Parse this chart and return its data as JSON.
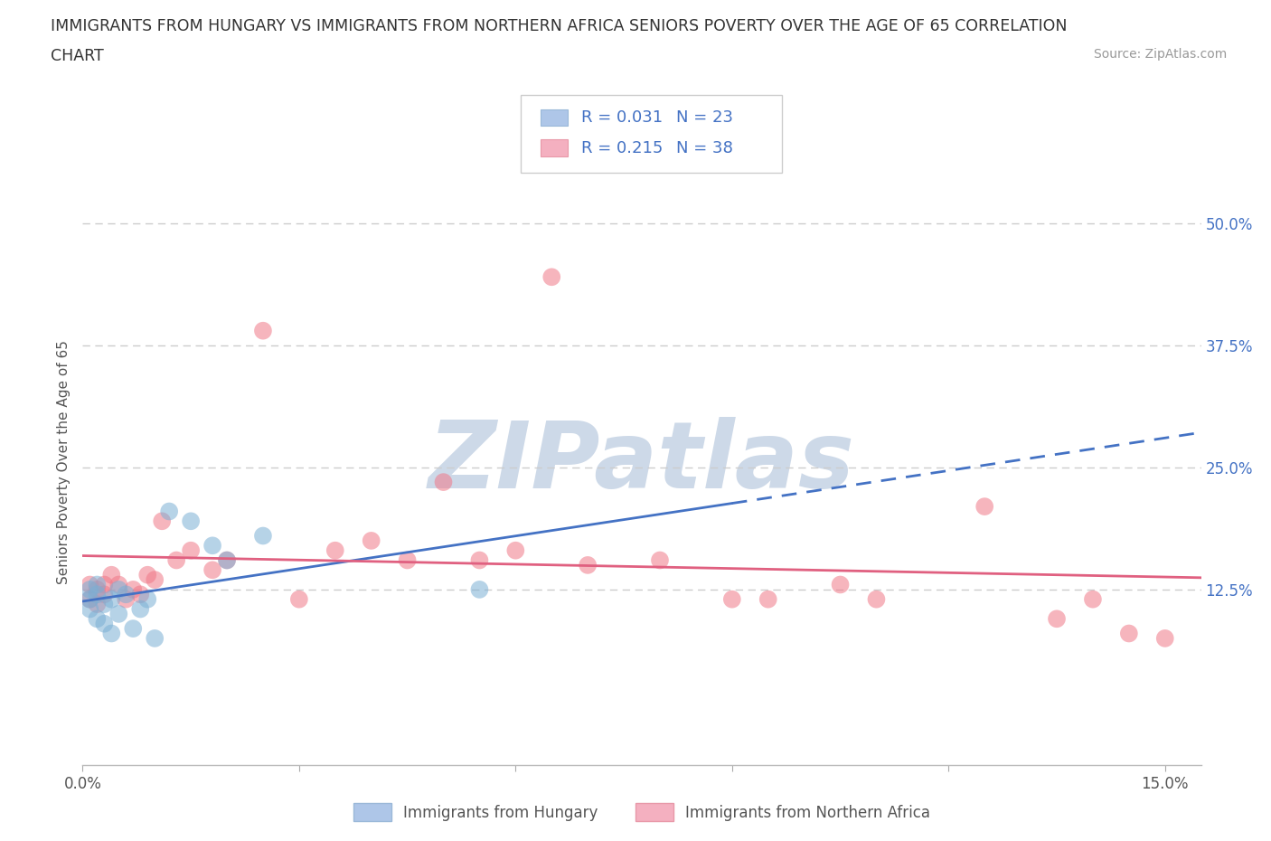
{
  "title_line1": "IMMIGRANTS FROM HUNGARY VS IMMIGRANTS FROM NORTHERN AFRICA SENIORS POVERTY OVER THE AGE OF 65 CORRELATION",
  "title_line2": "CHART",
  "source": "Source: ZipAtlas.com",
  "ylabel": "Seniors Poverty Over the Age of 65",
  "xlim": [
    0.0,
    0.155
  ],
  "ylim": [
    -0.055,
    0.565
  ],
  "ytick_positions": [
    0.125,
    0.25,
    0.375,
    0.5
  ],
  "ytick_labels": [
    "12.5%",
    "25.0%",
    "37.5%",
    "50.0%"
  ],
  "grid_color": "#cccccc",
  "background_color": "#ffffff",
  "watermark_text": "ZIPatlas",
  "watermark_color": "#cdd9e8",
  "hungary_fill_color": "#aec6e8",
  "hungary_dot_color": "#7bafd4",
  "africa_fill_color": "#f4b0c0",
  "africa_dot_color": "#f07888",
  "trend_hungary_color": "#4472c4",
  "trend_africa_color": "#e06080",
  "legend_r_hungary": "R = 0.031",
  "legend_n_hungary": "N = 23",
  "legend_r_africa": "R = 0.215",
  "legend_n_africa": "N = 38",
  "legend_label_hungary": "Immigrants from Hungary",
  "legend_label_africa": "Immigrants from Northern Africa",
  "r_n_color": "#4472c4",
  "hungary_x": [
    0.001,
    0.001,
    0.001,
    0.002,
    0.002,
    0.002,
    0.003,
    0.003,
    0.004,
    0.004,
    0.005,
    0.005,
    0.006,
    0.007,
    0.008,
    0.009,
    0.01,
    0.012,
    0.015,
    0.018,
    0.02,
    0.025,
    0.055
  ],
  "hungary_y": [
    0.125,
    0.115,
    0.105,
    0.13,
    0.12,
    0.095,
    0.11,
    0.09,
    0.115,
    0.08,
    0.125,
    0.1,
    0.12,
    0.085,
    0.105,
    0.115,
    0.075,
    0.205,
    0.195,
    0.17,
    0.155,
    0.18,
    0.125
  ],
  "africa_x": [
    0.001,
    0.001,
    0.002,
    0.002,
    0.003,
    0.003,
    0.004,
    0.005,
    0.006,
    0.007,
    0.008,
    0.009,
    0.01,
    0.011,
    0.013,
    0.015,
    0.018,
    0.02,
    0.025,
    0.03,
    0.035,
    0.04,
    0.045,
    0.05,
    0.055,
    0.06,
    0.065,
    0.07,
    0.08,
    0.09,
    0.095,
    0.105,
    0.11,
    0.125,
    0.135,
    0.14,
    0.145,
    0.15
  ],
  "africa_y": [
    0.13,
    0.115,
    0.125,
    0.11,
    0.13,
    0.12,
    0.14,
    0.13,
    0.115,
    0.125,
    0.12,
    0.14,
    0.135,
    0.195,
    0.155,
    0.165,
    0.145,
    0.155,
    0.39,
    0.115,
    0.165,
    0.175,
    0.155,
    0.235,
    0.155,
    0.165,
    0.445,
    0.15,
    0.155,
    0.115,
    0.115,
    0.13,
    0.115,
    0.21,
    0.095,
    0.115,
    0.08,
    0.075
  ]
}
